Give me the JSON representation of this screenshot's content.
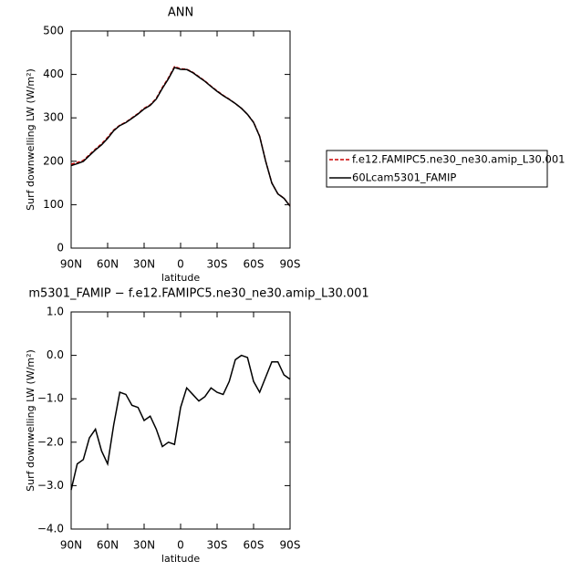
{
  "chart_data": [
    {
      "type": "line",
      "title": "ANN",
      "xlabel": "latitude",
      "ylabel": "Surf downwelling LW (W/m²)",
      "x": [
        90,
        85,
        80,
        75,
        70,
        65,
        60,
        55,
        50,
        45,
        40,
        35,
        30,
        25,
        20,
        15,
        10,
        5,
        0,
        -5,
        -10,
        -15,
        -20,
        -25,
        -30,
        -35,
        -40,
        -45,
        -50,
        -55,
        -60,
        -65,
        -70,
        -75,
        -80,
        -85,
        -90
      ],
      "xlim": [
        90,
        -90
      ],
      "xticks": [
        {
          "value": 90,
          "label": "90N"
        },
        {
          "value": 60,
          "label": "60N"
        },
        {
          "value": 30,
          "label": "30N"
        },
        0,
        {
          "value": -30,
          "label": "30S"
        },
        {
          "value": -60,
          "label": "60S"
        },
        {
          "value": -90,
          "label": "90S"
        }
      ],
      "ylim": [
        0,
        500
      ],
      "yticks": [
        0,
        100,
        200,
        300,
        400,
        500
      ],
      "legend": "right",
      "series": [
        {
          "name": "f.e12.FAMIPC5.ne30_ne30.amip_L30.001",
          "color": "#cc0000",
          "dash": true,
          "values": [
            193,
            197,
            202,
            215,
            228,
            240,
            255,
            272,
            283,
            290,
            300,
            310,
            322,
            330,
            345,
            370,
            392,
            418,
            413,
            412,
            405,
            395,
            385,
            373,
            362,
            352,
            343,
            333,
            322,
            308,
            290,
            258,
            200,
            150,
            125,
            115,
            97
          ]
        },
        {
          "name": "60Lcam5301_FAMIP",
          "color": "#000000",
          "dash": false,
          "values": [
            190,
            194.5,
            199.6,
            213.1,
            226.3,
            237.8,
            252.5,
            270.4,
            282.15,
            289.1,
            298.85,
            308.8,
            320.5,
            328.6,
            343.3,
            367.9,
            390,
            415.95,
            411.8,
            411.25,
            404.1,
            393.95,
            384.05,
            372.25,
            361.15,
            351.1,
            342.4,
            332.9,
            322,
            307.95,
            289.4,
            257.15,
            199.5,
            149.85,
            124.85,
            114.55,
            96.45
          ]
        }
      ]
    },
    {
      "type": "line",
      "title": "m5301_FAMIP − f.e12.FAMIPC5.ne30_ne30.amip_L30.001",
      "xlabel": "latitude",
      "ylabel": "Surf downwelling LW (W/m²)",
      "x": [
        90,
        85,
        80,
        75,
        70,
        65,
        60,
        55,
        50,
        45,
        40,
        35,
        30,
        25,
        20,
        15,
        10,
        5,
        0,
        -5,
        -10,
        -15,
        -20,
        -25,
        -30,
        -35,
        -40,
        -45,
        -50,
        -55,
        -60,
        -65,
        -70,
        -75,
        -80,
        -85,
        -90
      ],
      "xlim": [
        90,
        -90
      ],
      "xticks": [
        {
          "value": 90,
          "label": "90N"
        },
        {
          "value": 60,
          "label": "60N"
        },
        {
          "value": 30,
          "label": "30N"
        },
        0,
        {
          "value": -30,
          "label": "30S"
        },
        {
          "value": -60,
          "label": "60S"
        },
        {
          "value": -90,
          "label": "90S"
        }
      ],
      "ylim": [
        -4,
        1
      ],
      "yticks": [
        {
          "value": -4,
          "label": "−4.0"
        },
        {
          "value": -3,
          "label": "−3.0"
        },
        {
          "value": -2,
          "label": "−2.0"
        },
        {
          "value": -1,
          "label": "−1.0"
        },
        {
          "value": 0,
          "label": "0.0"
        },
        {
          "value": 1,
          "label": "1.0"
        }
      ],
      "series": [
        {
          "color": "#000000",
          "dash": false,
          "values": [
            -3.1,
            -2.5,
            -2.4,
            -1.9,
            -1.7,
            -2.2,
            -2.5,
            -1.6,
            -0.85,
            -0.9,
            -1.15,
            -1.2,
            -1.5,
            -1.4,
            -1.7,
            -2.1,
            -2.0,
            -2.05,
            -1.2,
            -0.75,
            -0.9,
            -1.05,
            -0.95,
            -0.75,
            -0.85,
            -0.9,
            -0.6,
            -0.1,
            0.0,
            -0.05,
            -0.6,
            -0.85,
            -0.5,
            -0.15,
            -0.15,
            -0.45,
            -0.55
          ]
        }
      ]
    }
  ]
}
